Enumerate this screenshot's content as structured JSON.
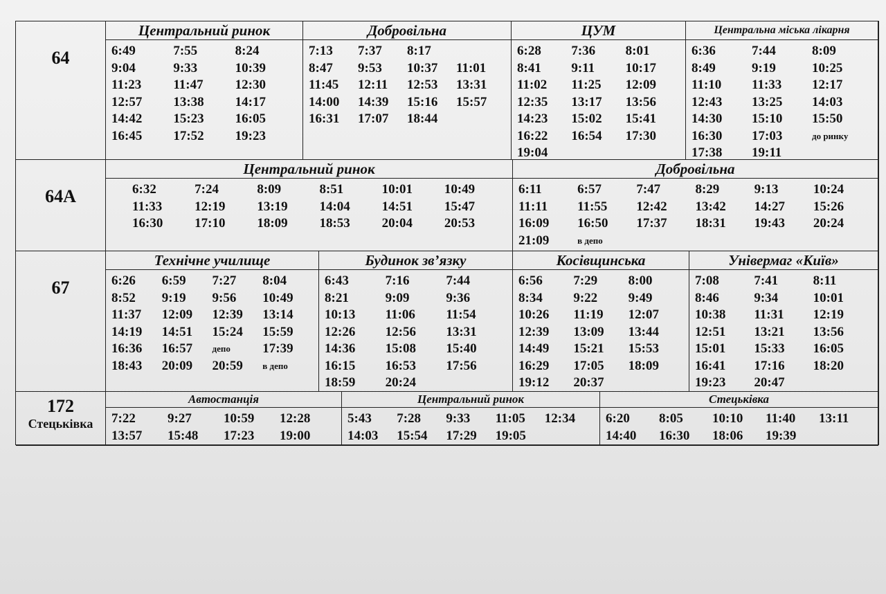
{
  "routes": [
    {
      "name": "64",
      "stops": [
        {
          "name": "Центральний ринок",
          "rows": [
            [
              "6:49",
              "7:55",
              "8:24"
            ],
            [
              "9:04",
              "9:33",
              "10:39"
            ],
            [
              "11:23",
              "11:47",
              "12:30"
            ],
            [
              "12:57",
              "13:38",
              "14:17"
            ],
            [
              "14:42",
              "15:23",
              "16:05"
            ],
            [
              "16:45",
              "17:52",
              "19:23"
            ]
          ]
        },
        {
          "name": "Добровільна",
          "rows": [
            [
              "7:13",
              "7:37",
              "8:17"
            ],
            [
              "8:47",
              "9:53",
              "10:37",
              "11:01"
            ],
            [
              "11:45",
              "12:11",
              "12:53",
              "13:31"
            ],
            [
              "14:00",
              "14:39",
              "15:16",
              "15:57"
            ],
            [
              "16:31",
              "17:07",
              "18:44"
            ]
          ]
        },
        {
          "name": "ЦУМ",
          "rows": [
            [
              "6:28",
              "7:36",
              "8:01"
            ],
            [
              "8:41",
              "9:11",
              "10:17"
            ],
            [
              "11:02",
              "11:25",
              "12:09"
            ],
            [
              "12:35",
              "13:17",
              "13:56"
            ],
            [
              "14:23",
              "15:02",
              "15:41"
            ],
            [
              "16:22",
              "16:54",
              "17:30"
            ],
            [
              "19:04"
            ]
          ]
        },
        {
          "name": "Центральна міська лікарня",
          "rows": [
            [
              "6:36",
              "7:44",
              "8:09"
            ],
            [
              "8:49",
              "9:19",
              "10:25"
            ],
            [
              "11:10",
              "11:33",
              "12:17"
            ],
            [
              "12:43",
              "13:25",
              "14:03"
            ],
            [
              "14:30",
              "15:10",
              "15:50"
            ],
            [
              "16:30",
              "17:03",
              "до ринку"
            ],
            [
              "17:38",
              "19:11"
            ]
          ]
        }
      ]
    },
    {
      "name": "64А",
      "stops": [
        {
          "name": "Центральний ринок",
          "rows": [
            [
              "6:32",
              "7:24",
              "8:09",
              "8:51",
              "10:01",
              "10:49"
            ],
            [
              "11:33",
              "12:19",
              "13:19",
              "14:04",
              "14:51",
              "15:47"
            ],
            [
              "16:30",
              "17:10",
              "18:09",
              "18:53",
              "20:04",
              "20:53"
            ]
          ]
        },
        {
          "name": "Добровільна",
          "rows": [
            [
              "6:11",
              "6:57",
              "7:47",
              "8:29",
              "9:13",
              "10:24"
            ],
            [
              "11:11",
              "11:55",
              "12:42",
              "13:42",
              "14:27",
              "15:26"
            ],
            [
              "16:09",
              "16:50",
              "17:37",
              "18:31",
              "19:43",
              "20:24"
            ],
            [
              "21:09",
              "в депо"
            ]
          ]
        }
      ]
    },
    {
      "name": "67",
      "stops": [
        {
          "name": "Технічне училище",
          "rows": [
            [
              "6:26",
              "6:59",
              "7:27",
              "8:04"
            ],
            [
              "8:52",
              "9:19",
              "9:56",
              "10:49"
            ],
            [
              "11:37",
              "12:09",
              "12:39",
              "13:14"
            ],
            [
              "14:19",
              "14:51",
              "15:24",
              "15:59"
            ],
            [
              "16:36",
              "16:57",
              "депо",
              "17:39"
            ],
            [
              "18:43",
              "20:09",
              "20:59",
              "в депо"
            ]
          ]
        },
        {
          "name": "Будинок зв’язку",
          "rows": [
            [
              "6:43",
              "7:16",
              "7:44"
            ],
            [
              "8:21",
              "9:09",
              "9:36"
            ],
            [
              "10:13",
              "11:06",
              "11:54"
            ],
            [
              "12:26",
              "12:56",
              "13:31"
            ],
            [
              "14:36",
              "15:08",
              "15:40"
            ],
            [
              "16:15",
              "16:53",
              "17:56"
            ],
            [
              "18:59",
              "20:24"
            ]
          ]
        },
        {
          "name": "Косівщинська",
          "rows": [
            [
              "6:56",
              "7:29",
              "8:00"
            ],
            [
              "8:34",
              "9:22",
              "9:49"
            ],
            [
              "10:26",
              "11:19",
              "12:07"
            ],
            [
              "12:39",
              "13:09",
              "13:44"
            ],
            [
              "14:49",
              "15:21",
              "15:53"
            ],
            [
              "16:29",
              "17:05",
              "18:09"
            ],
            [
              "19:12",
              "20:37"
            ]
          ]
        },
        {
          "name": "Універмаг «Київ»",
          "rows": [
            [
              "7:08",
              "7:41",
              "8:11"
            ],
            [
              "8:46",
              "9:34",
              "10:01"
            ],
            [
              "10:38",
              "11:31",
              "12:19"
            ],
            [
              "12:51",
              "13:21",
              "13:56"
            ],
            [
              "15:01",
              "15:33",
              "16:05"
            ],
            [
              "16:41",
              "17:16",
              "18:20"
            ],
            [
              "19:23",
              "20:47"
            ]
          ]
        }
      ]
    },
    {
      "name": "172",
      "subtitle": "Стецьківка",
      "stops": [
        {
          "name": "Автостанція",
          "rows": [
            [
              "7:22",
              "9:27",
              "10:59",
              "12:28"
            ],
            [
              "13:57",
              "15:48",
              "17:23",
              "19:00"
            ]
          ]
        },
        {
          "name": "Центральний ринок",
          "rows": [
            [
              "5:43",
              "7:28",
              "9:33",
              "11:05",
              "12:34"
            ],
            [
              "14:03",
              "15:54",
              "17:29",
              "19:05"
            ]
          ]
        },
        {
          "name": "Стецьківка",
          "rows": [
            [
              "6:20",
              "8:05",
              "10:10",
              "11:40",
              "13:11"
            ],
            [
              "14:40",
              "16:30",
              "18:06",
              "19:39"
            ]
          ]
        }
      ]
    }
  ]
}
